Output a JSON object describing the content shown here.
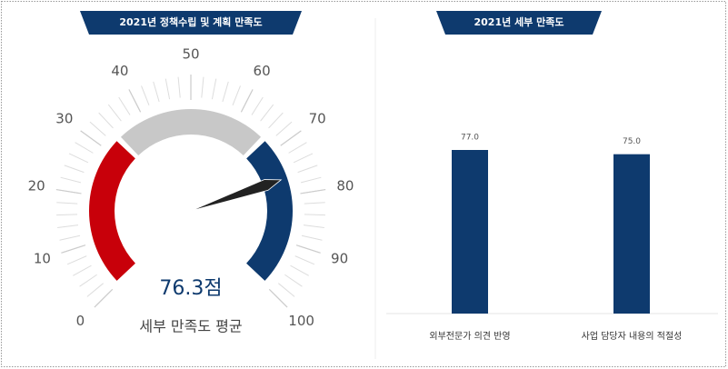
{
  "chart_data": [
    {
      "type": "gauge",
      "title": "2021년 정책수립 및 계획 만족도",
      "value": 76.3,
      "value_label": "76.3점",
      "subtitle": "세부 만족도 평균",
      "ticks": [
        0,
        10,
        20,
        30,
        40,
        50,
        60,
        70,
        80,
        90,
        100
      ],
      "range": [
        0,
        100
      ],
      "bands": [
        {
          "from": 0,
          "to": 33.3,
          "color": "#c8000a"
        },
        {
          "from": 33.3,
          "to": 66.7,
          "color": "#c8c8c8"
        },
        {
          "from": 66.7,
          "to": 100,
          "color": "#0e3a6e"
        }
      ]
    },
    {
      "type": "bar",
      "title": "2021년 세부 만족도",
      "categories": [
        "외부전문가 의견 반영",
        "사업 담당자 내용의 적절성"
      ],
      "values": [
        77.0,
        75.0
      ],
      "value_labels": [
        "77.0",
        "75.0"
      ],
      "color": "#0e3a6e"
    }
  ]
}
